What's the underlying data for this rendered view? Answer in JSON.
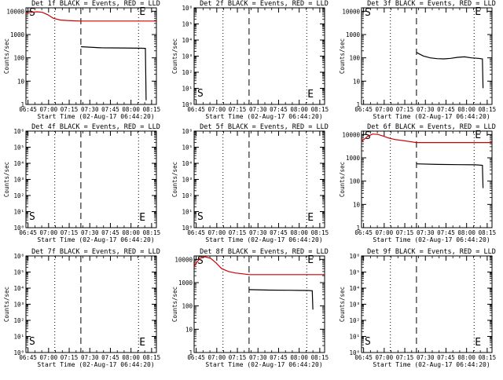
{
  "x_ticks": [
    "06:45",
    "07:00",
    "07:15",
    "07:30",
    "07:45",
    "08:00",
    "08:15"
  ],
  "x_range_minutes": [
    0,
    95
  ],
  "flare_markers": {
    "dotted_lines_minutes": [
      21,
      82,
      95
    ],
    "dashed_line_minutes": 40,
    "start_label": "S",
    "end_label": "E"
  },
  "colors": {
    "events": "#000000",
    "lld": "#cc0000",
    "markers": "#000000"
  },
  "chart_data": [
    {
      "type": "line",
      "title": "Det 1f BLACK = Events, RED = LLD",
      "xlabel": "Start Time (02-Aug-17 06:44:20)",
      "ylabel": "Counts/sec",
      "yscale": "log",
      "ylim": [
        1,
        14000
      ],
      "yticks": [
        {
          "v": 1,
          "t": "1"
        },
        {
          "v": 10,
          "t": "10"
        },
        {
          "v": 100,
          "t": "100"
        },
        {
          "v": 1000,
          "t": "1000"
        },
        {
          "v": 10000,
          "t": "10000"
        }
      ],
      "series": [
        {
          "name": "Events",
          "color": "#000000",
          "points": [
            [
              40,
              300
            ],
            [
              55,
              270
            ],
            [
              70,
              265
            ],
            [
              83,
              260
            ],
            [
              87,
              255
            ],
            [
              87.5,
              1.5
            ]
          ]
        },
        {
          "name": "LLD",
          "color": "#cc0000",
          "points": [
            [
              0,
              8000
            ],
            [
              4,
              9000
            ],
            [
              8,
              9500
            ],
            [
              12,
              9000
            ],
            [
              16,
              7000
            ],
            [
              20,
              5000
            ],
            [
              25,
              4200
            ],
            [
              30,
              4000
            ],
            [
              35,
              3900
            ],
            [
              40,
              3800
            ],
            [
              60,
              3800
            ],
            [
              95,
              3800
            ]
          ]
        }
      ]
    },
    {
      "type": "line",
      "title": "Det 2f BLACK = Events, RED = LLD",
      "xlabel": "Start Time (02-Aug-17 06:44:20)",
      "ylabel": "Counts/sec",
      "yscale": "log",
      "ylim": [
        1,
        1000000
      ],
      "yticks": [
        {
          "v": 1,
          "t": "10⁰"
        },
        {
          "v": 10,
          "t": "10¹"
        },
        {
          "v": 100,
          "t": "10²"
        },
        {
          "v": 1000,
          "t": "10³"
        },
        {
          "v": 10000,
          "t": "10⁴"
        },
        {
          "v": 100000,
          "t": "10⁵"
        },
        {
          "v": 1000000,
          "t": "10⁶"
        }
      ],
      "series": []
    },
    {
      "type": "line",
      "title": "Det 3f BLACK = Events, RED = LLD",
      "xlabel": "Start Time (02-Aug-17 06:44:20)",
      "ylabel": "Counts/sec",
      "yscale": "log",
      "ylim": [
        1,
        14000
      ],
      "yticks": [
        {
          "v": 1,
          "t": "1"
        },
        {
          "v": 10,
          "t": "10"
        },
        {
          "v": 100,
          "t": "100"
        },
        {
          "v": 1000,
          "t": "1000"
        },
        {
          "v": 10000,
          "t": "10000"
        }
      ],
      "series": [
        {
          "name": "Events",
          "color": "#000000",
          "points": [
            [
              40,
              170
            ],
            [
              45,
              120
            ],
            [
              50,
              100
            ],
            [
              55,
              92
            ],
            [
              60,
              90
            ],
            [
              65,
              95
            ],
            [
              70,
              105
            ],
            [
              75,
              110
            ],
            [
              80,
              100
            ],
            [
              85,
              95
            ],
            [
              88,
              90
            ],
            [
              88.5,
              5
            ]
          ]
        }
      ]
    },
    {
      "type": "line",
      "title": "Det 4f BLACK = Events, RED = LLD",
      "xlabel": "Start Time (02-Aug-17 06:44:20)",
      "ylabel": "Counts/sec",
      "yscale": "log",
      "ylim": [
        1,
        1000000
      ],
      "yticks": [
        {
          "v": 1,
          "t": "10⁰"
        },
        {
          "v": 10,
          "t": "10¹"
        },
        {
          "v": 100,
          "t": "10²"
        },
        {
          "v": 1000,
          "t": "10³"
        },
        {
          "v": 10000,
          "t": "10⁴"
        },
        {
          "v": 100000,
          "t": "10⁵"
        },
        {
          "v": 1000000,
          "t": "10⁶"
        }
      ],
      "series": []
    },
    {
      "type": "line",
      "title": "Det 5f BLACK = Events, RED = LLD",
      "xlabel": "Start Time (02-Aug-17 06:44:20)",
      "ylabel": "Counts/sec",
      "yscale": "log",
      "ylim": [
        1,
        1000000
      ],
      "yticks": [
        {
          "v": 1,
          "t": "10⁰"
        },
        {
          "v": 10,
          "t": "10¹"
        },
        {
          "v": 100,
          "t": "10²"
        },
        {
          "v": 1000,
          "t": "10³"
        },
        {
          "v": 10000,
          "t": "10⁴"
        },
        {
          "v": 100000,
          "t": "10⁵"
        },
        {
          "v": 1000000,
          "t": "10⁶"
        }
      ],
      "series": []
    },
    {
      "type": "line",
      "title": "Det 6f BLACK = Events, RED = LLD",
      "xlabel": "Start Time (02-Aug-17 06:44:20)",
      "ylabel": "Counts/sec",
      "yscale": "log",
      "ylim": [
        1,
        14000
      ],
      "yticks": [
        {
          "v": 1,
          "t": "1"
        },
        {
          "v": 10,
          "t": "10"
        },
        {
          "v": 100,
          "t": "100"
        },
        {
          "v": 1000,
          "t": "1000"
        },
        {
          "v": 10000,
          "t": "10000"
        }
      ],
      "series": [
        {
          "name": "Events",
          "color": "#000000",
          "points": [
            [
              40,
              550
            ],
            [
              55,
              520
            ],
            [
              70,
              510
            ],
            [
              83,
              500
            ],
            [
              88,
              480
            ],
            [
              88.5,
              50
            ]
          ]
        },
        {
          "name": "LLD",
          "color": "#cc0000",
          "points": [
            [
              0,
              5000
            ],
            [
              4,
              8000
            ],
            [
              8,
              10500
            ],
            [
              12,
              10000
            ],
            [
              16,
              8500
            ],
            [
              20,
              7000
            ],
            [
              25,
              6000
            ],
            [
              30,
              5500
            ],
            [
              35,
              5000
            ],
            [
              40,
              4500
            ],
            [
              60,
              4500
            ],
            [
              95,
              4500
            ]
          ]
        }
      ]
    },
    {
      "type": "line",
      "title": "Det 7f BLACK = Events, RED = LLD",
      "xlabel": "Start Time (02-Aug-17 06:44:20)",
      "ylabel": "Counts/sec",
      "yscale": "log",
      "ylim": [
        1,
        1000000
      ],
      "yticks": [
        {
          "v": 1,
          "t": "10⁰"
        },
        {
          "v": 10,
          "t": "10¹"
        },
        {
          "v": 100,
          "t": "10²"
        },
        {
          "v": 1000,
          "t": "10³"
        },
        {
          "v": 10000,
          "t": "10⁴"
        },
        {
          "v": 100000,
          "t": "10⁵"
        },
        {
          "v": 1000000,
          "t": "10⁶"
        }
      ],
      "series": []
    },
    {
      "type": "line",
      "title": "Det 8f BLACK = Events, RED = LLD",
      "xlabel": "Start Time (02-Aug-17 06:44:20)",
      "ylabel": "Counts/sec",
      "yscale": "log",
      "ylim": [
        1,
        14000
      ],
      "yticks": [
        {
          "v": 1,
          "t": "1"
        },
        {
          "v": 10,
          "t": "10"
        },
        {
          "v": 100,
          "t": "100"
        },
        {
          "v": 1000,
          "t": "1000"
        },
        {
          "v": 10000,
          "t": "10000"
        }
      ],
      "series": [
        {
          "name": "Events",
          "color": "#000000",
          "points": [
            [
              40,
              500
            ],
            [
              55,
              480
            ],
            [
              70,
              470
            ],
            [
              83,
              460
            ],
            [
              86,
              450
            ],
            [
              86.5,
              70
            ]
          ]
        },
        {
          "name": "LLD",
          "color": "#cc0000",
          "points": [
            [
              0,
              5000
            ],
            [
              4,
              11000
            ],
            [
              8,
              13000
            ],
            [
              12,
              11000
            ],
            [
              16,
              7000
            ],
            [
              20,
              4000
            ],
            [
              25,
              3000
            ],
            [
              30,
              2600
            ],
            [
              35,
              2400
            ],
            [
              40,
              2200
            ],
            [
              60,
              2200
            ],
            [
              95,
              2200
            ]
          ]
        }
      ]
    },
    {
      "type": "line",
      "title": "Det 9f BLACK = Events, RED = LLD",
      "xlabel": "Start Time (02-Aug-17 06:44:20)",
      "ylabel": "Counts/sec",
      "yscale": "log",
      "ylim": [
        1,
        1000000
      ],
      "yticks": [
        {
          "v": 1,
          "t": "10⁰"
        },
        {
          "v": 10,
          "t": "10¹"
        },
        {
          "v": 100,
          "t": "10²"
        },
        {
          "v": 1000,
          "t": "10³"
        },
        {
          "v": 10000,
          "t": "10⁴"
        },
        {
          "v": 100000,
          "t": "10⁵"
        },
        {
          "v": 1000000,
          "t": "10⁶"
        }
      ],
      "series": []
    }
  ]
}
